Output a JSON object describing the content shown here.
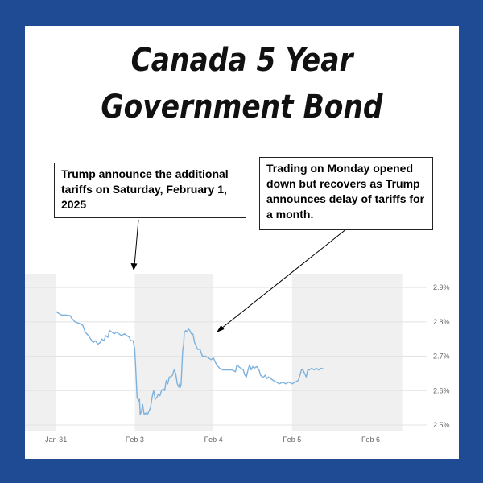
{
  "title": "Canada 5 Year Government Bond",
  "annotations": [
    "Trump announce the additional tariffs on Saturday, February 1, 2025",
    "Trading on Monday opened down but recovers as Trump announces delay of tariffs for a month."
  ],
  "colors": {
    "frame": "#1e4b94",
    "line": "#7db1de",
    "band": "#f0f0f0",
    "grid": "#e3e3e3"
  },
  "chart_data": {
    "type": "line",
    "x_ticks": [
      "Jan 31",
      "Feb 3",
      "Feb 4",
      "Feb 5",
      "Feb 6"
    ],
    "y_ticks": [
      "2.5%",
      "2.6%",
      "2.7%",
      "2.8%",
      "2.9%"
    ],
    "y_tick_values": [
      2.5,
      2.6,
      2.7,
      2.8,
      2.9
    ],
    "ylim": [
      2.5,
      2.94
    ],
    "xlim": [
      0,
      5
    ],
    "grid": true,
    "series": [
      {
        "points": [
          [
            0,
            2.83
          ],
          [
            0.03,
            2.825
          ],
          [
            0.07,
            2.82
          ],
          [
            0.12,
            2.82
          ],
          [
            0.18,
            2.818
          ],
          [
            0.2,
            2.81
          ],
          [
            0.24,
            2.8
          ],
          [
            0.3,
            2.795
          ],
          [
            0.34,
            2.79
          ],
          [
            0.37,
            2.77
          ],
          [
            0.41,
            2.76
          ],
          [
            0.44,
            2.75
          ],
          [
            0.47,
            2.74
          ],
          [
            0.5,
            2.745
          ],
          [
            0.53,
            2.735
          ],
          [
            0.56,
            2.74
          ],
          [
            0.58,
            2.75
          ],
          [
            0.61,
            2.745
          ],
          [
            0.63,
            2.76
          ],
          [
            0.66,
            2.755
          ],
          [
            0.68,
            2.775
          ],
          [
            0.71,
            2.77
          ],
          [
            0.74,
            2.765
          ],
          [
            0.77,
            2.77
          ],
          [
            0.8,
            2.765
          ],
          [
            0.83,
            2.76
          ],
          [
            0.87,
            2.765
          ],
          [
            0.9,
            2.76
          ],
          [
            0.93,
            2.755
          ],
          [
            0.95,
            2.745
          ],
          [
            0.98,
            2.745
          ],
          [
            1.0,
            2.72
          ],
          [
            1.015,
            2.65
          ],
          [
            1.03,
            2.58
          ],
          [
            1.05,
            2.57
          ],
          [
            1.06,
            2.575
          ],
          [
            1.07,
            2.53
          ],
          [
            1.085,
            2.54
          ],
          [
            1.1,
            2.56
          ],
          [
            1.12,
            2.53
          ],
          [
            1.14,
            2.535
          ],
          [
            1.16,
            2.53
          ],
          [
            1.18,
            2.54
          ],
          [
            1.2,
            2.55
          ],
          [
            1.22,
            2.58
          ],
          [
            1.24,
            2.6
          ],
          [
            1.26,
            2.575
          ],
          [
            1.28,
            2.58
          ],
          [
            1.3,
            2.59
          ],
          [
            1.32,
            2.585
          ],
          [
            1.34,
            2.6
          ],
          [
            1.36,
            2.605
          ],
          [
            1.38,
            2.6
          ],
          [
            1.4,
            2.63
          ],
          [
            1.42,
            2.62
          ],
          [
            1.44,
            2.64
          ],
          [
            1.46,
            2.64
          ],
          [
            1.48,
            2.645
          ],
          [
            1.5,
            2.66
          ],
          [
            1.52,
            2.65
          ],
          [
            1.54,
            2.62
          ],
          [
            1.56,
            2.61
          ],
          [
            1.57,
            2.62
          ],
          [
            1.58,
            2.61
          ],
          [
            1.59,
            2.62
          ],
          [
            1.6,
            2.67
          ],
          [
            1.61,
            2.72
          ],
          [
            1.62,
            2.73
          ],
          [
            1.63,
            2.77
          ],
          [
            1.65,
            2.775
          ],
          [
            1.67,
            2.77
          ],
          [
            1.68,
            2.78
          ],
          [
            1.7,
            2.775
          ],
          [
            1.72,
            2.765
          ],
          [
            1.74,
            2.765
          ],
          [
            1.76,
            2.74
          ],
          [
            1.78,
            2.73
          ],
          [
            1.8,
            2.72
          ],
          [
            1.83,
            2.72
          ],
          [
            1.86,
            2.7
          ],
          [
            1.9,
            2.7
          ],
          [
            1.94,
            2.695
          ],
          [
            1.97,
            2.69
          ],
          [
            2.0,
            2.695
          ],
          [
            2.04,
            2.675
          ],
          [
            2.08,
            2.665
          ],
          [
            2.12,
            2.66
          ],
          [
            2.16,
            2.66
          ],
          [
            2.2,
            2.66
          ],
          [
            2.24,
            2.66
          ],
          [
            2.28,
            2.655
          ],
          [
            2.3,
            2.675
          ],
          [
            2.32,
            2.67
          ],
          [
            2.35,
            2.665
          ],
          [
            2.38,
            2.66
          ],
          [
            2.4,
            2.645
          ],
          [
            2.42,
            2.64
          ],
          [
            2.44,
            2.66
          ],
          [
            2.46,
            2.675
          ],
          [
            2.48,
            2.66
          ],
          [
            2.5,
            2.67
          ],
          [
            2.52,
            2.665
          ],
          [
            2.55,
            2.67
          ],
          [
            2.58,
            2.66
          ],
          [
            2.6,
            2.645
          ],
          [
            2.62,
            2.64
          ],
          [
            2.64,
            2.64
          ],
          [
            2.66,
            2.645
          ],
          [
            2.68,
            2.635
          ],
          [
            2.7,
            2.64
          ],
          [
            2.73,
            2.635
          ],
          [
            2.76,
            2.63
          ],
          [
            2.8,
            2.625
          ],
          [
            2.84,
            2.62
          ],
          [
            2.88,
            2.625
          ],
          [
            2.92,
            2.62
          ],
          [
            2.96,
            2.625
          ],
          [
            3.0,
            2.62
          ],
          [
            3.04,
            2.625
          ],
          [
            3.08,
            2.63
          ],
          [
            3.1,
            2.645
          ],
          [
            3.12,
            2.66
          ],
          [
            3.14,
            2.66
          ],
          [
            3.16,
            2.65
          ],
          [
            3.18,
            2.64
          ],
          [
            3.2,
            2.66
          ],
          [
            3.22,
            2.66
          ],
          [
            3.25,
            2.665
          ],
          [
            3.28,
            2.66
          ],
          [
            3.31,
            2.665
          ],
          [
            3.34,
            2.66
          ],
          [
            3.37,
            2.665
          ],
          [
            3.4,
            2.663
          ]
        ]
      }
    ]
  }
}
